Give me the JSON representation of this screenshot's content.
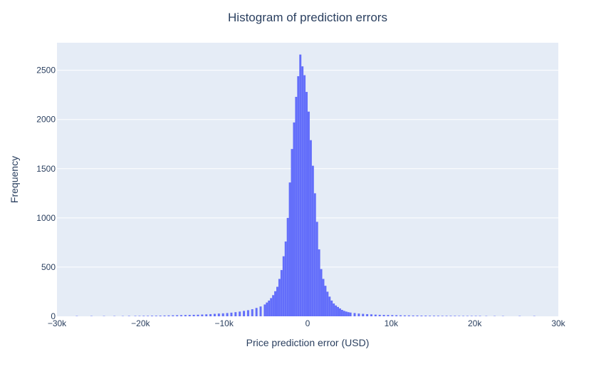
{
  "chart_data": {
    "type": "bar",
    "title": "Histogram of prediction errors",
    "xlabel": "Price prediction error (USD)",
    "ylabel": "Frequency",
    "xlim": [
      -30000,
      30000
    ],
    "ylim": [
      0,
      2780
    ],
    "grid": true,
    "colors": {
      "bar": "#636efa",
      "plot_bg": "#e5ecf6",
      "grid": "#ffffff",
      "text": "#2a3f5f"
    },
    "x_ticks": [
      {
        "value": -30000,
        "label": "−30k"
      },
      {
        "value": -20000,
        "label": "−20k"
      },
      {
        "value": -10000,
        "label": "−10k"
      },
      {
        "value": 0,
        "label": "0"
      },
      {
        "value": 10000,
        "label": "10k"
      },
      {
        "value": 20000,
        "label": "20k"
      },
      {
        "value": 30000,
        "label": "30k"
      }
    ],
    "y_ticks": [
      {
        "value": 0,
        "label": "0"
      },
      {
        "value": 500,
        "label": "500"
      },
      {
        "value": 1000,
        "label": "1000"
      },
      {
        "value": 1500,
        "label": "1500"
      },
      {
        "value": 2000,
        "label": "2000"
      },
      {
        "value": 2500,
        "label": "2500"
      }
    ],
    "bin_width": 250,
    "bin_centers": [
      -27625,
      -25875,
      -24375,
      -23125,
      -22125,
      -21375,
      -20625,
      -20125,
      -19625,
      -19125,
      -18625,
      -18125,
      -17625,
      -17125,
      -16625,
      -16125,
      -15625,
      -15125,
      -14625,
      -14125,
      -13625,
      -13125,
      -12625,
      -12125,
      -11625,
      -11125,
      -10625,
      -10125,
      -9625,
      -9125,
      -8625,
      -8125,
      -7625,
      -7125,
      -6625,
      -6125,
      -5625,
      -5125,
      -4875,
      -4625,
      -4375,
      -4125,
      -3875,
      -3625,
      -3375,
      -3125,
      -2875,
      -2625,
      -2375,
      -2125,
      -1875,
      -1625,
      -1375,
      -1125,
      -875,
      -625,
      -375,
      -125,
      125,
      375,
      625,
      875,
      1125,
      1375,
      1625,
      1875,
      2125,
      2375,
      2625,
      2875,
      3125,
      3375,
      3625,
      3875,
      4125,
      4375,
      4625,
      4875,
      5125,
      5625,
      6125,
      6625,
      7125,
      7625,
      8125,
      8625,
      9125,
      9625,
      10125,
      10625,
      11125,
      11625,
      12125,
      12625,
      13125,
      13625,
      14125,
      14625,
      15125,
      15625,
      16125,
      16625,
      17125,
      17625,
      18125,
      18625,
      19125,
      19625,
      20125,
      20625,
      21375,
      22375,
      23375,
      25375,
      27125
    ],
    "values": [
      3,
      3,
      3,
      3,
      3,
      4,
      4,
      4,
      5,
      5,
      6,
      6,
      7,
      8,
      9,
      10,
      11,
      12,
      13,
      14,
      15,
      16,
      18,
      20,
      22,
      25,
      28,
      30,
      33,
      37,
      42,
      48,
      55,
      62,
      72,
      85,
      100,
      120,
      140,
      160,
      185,
      215,
      255,
      300,
      380,
      470,
      610,
      760,
      1000,
      1360,
      1700,
      1970,
      2230,
      2440,
      2660,
      2540,
      2450,
      2280,
      2080,
      1790,
      1530,
      1250,
      960,
      680,
      480,
      380,
      310,
      250,
      200,
      160,
      130,
      110,
      95,
      80,
      65,
      55,
      48,
      42,
      38,
      33,
      28,
      25,
      22,
      20,
      17,
      15,
      14,
      13,
      12,
      11,
      10,
      9,
      9,
      8,
      8,
      7,
      7,
      6,
      6,
      6,
      5,
      5,
      5,
      5,
      4,
      4,
      4,
      4,
      4,
      4,
      3,
      3,
      3,
      3,
      3
    ]
  }
}
